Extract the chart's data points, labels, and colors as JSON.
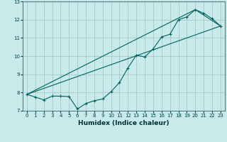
{
  "title": "",
  "xlabel": "Humidex (Indice chaleur)",
  "ylabel": "",
  "background_color": "#c8eaea",
  "grid_color": "#a8c8c8",
  "line_color": "#006060",
  "xlim": [
    -0.5,
    23.5
  ],
  "ylim": [
    7,
    13
  ],
  "yticks": [
    7,
    8,
    9,
    10,
    11,
    12,
    13
  ],
  "xticks": [
    0,
    1,
    2,
    3,
    4,
    5,
    6,
    7,
    8,
    9,
    10,
    11,
    12,
    13,
    14,
    15,
    16,
    17,
    18,
    19,
    20,
    21,
    22,
    23
  ],
  "series1_x": [
    0,
    1,
    2,
    3,
    4,
    5,
    6,
    7,
    8,
    9,
    10,
    11,
    12,
    13,
    14,
    15,
    16,
    17,
    18,
    19,
    20,
    21,
    22,
    23
  ],
  "series1_y": [
    7.9,
    7.75,
    7.6,
    7.8,
    7.8,
    7.78,
    7.1,
    7.4,
    7.55,
    7.65,
    8.05,
    8.55,
    9.35,
    10.05,
    9.95,
    10.4,
    11.05,
    11.2,
    12.0,
    12.15,
    12.55,
    12.35,
    12.05,
    11.65
  ],
  "series2_x": [
    0,
    23
  ],
  "series2_y": [
    7.9,
    11.65
  ],
  "series3_x": [
    0,
    20,
    23
  ],
  "series3_y": [
    7.9,
    12.55,
    11.65
  ]
}
